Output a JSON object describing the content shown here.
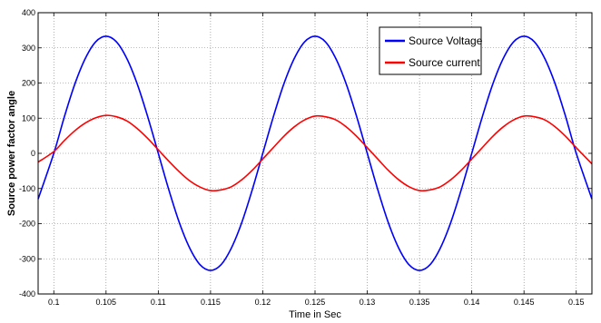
{
  "chart_data": {
    "type": "line",
    "xlabel": "Time in Sec",
    "ylabel": "Source power factor angle",
    "xlim": [
      0.0985,
      0.1515
    ],
    "ylim": [
      -400,
      400
    ],
    "x_ticks": [
      0.1,
      0.105,
      0.11,
      0.115,
      0.12,
      0.125,
      0.13,
      0.135,
      0.14,
      0.145,
      0.15
    ],
    "x_tick_labels": [
      "0.1",
      "0.105",
      "0.11",
      "0.115",
      "0.12",
      "0.125",
      "0.13",
      "0.135",
      "0.14",
      "0.145",
      "0.15"
    ],
    "y_ticks": [
      -400,
      -300,
      -200,
      -100,
      0,
      100,
      200,
      300,
      400
    ],
    "y_tick_labels": [
      "-400",
      "-300",
      "-200",
      "-100",
      "0",
      "100",
      "200",
      "300",
      "400"
    ],
    "grid": true,
    "legend": {
      "position": "top-right"
    },
    "series": [
      {
        "name": "Source Voltage",
        "color": "#0000ff",
        "x": [
          0.0985,
          0.1,
          0.101,
          0.102,
          0.103,
          0.104,
          0.105,
          0.106,
          0.107,
          0.108,
          0.109,
          0.11,
          0.111,
          0.112,
          0.113,
          0.114,
          0.115,
          0.116,
          0.117,
          0.118,
          0.119,
          0.12,
          0.121,
          0.122,
          0.123,
          0.124,
          0.125,
          0.126,
          0.127,
          0.128,
          0.129,
          0.13,
          0.131,
          0.132,
          0.133,
          0.134,
          0.135,
          0.136,
          0.137,
          0.138,
          0.139,
          0.14,
          0.141,
          0.142,
          0.143,
          0.144,
          0.145,
          0.146,
          0.147,
          0.148,
          0.149,
          0.15,
          0.1515
        ],
        "y": [
          -130,
          0,
          103,
          196,
          269,
          317,
          333,
          317,
          269,
          196,
          103,
          0,
          -103,
          -196,
          -269,
          -317,
          -333,
          -317,
          -269,
          -196,
          -103,
          0,
          103,
          196,
          269,
          317,
          333,
          317,
          269,
          196,
          103,
          0,
          -103,
          -196,
          -269,
          -317,
          -333,
          -317,
          -269,
          -196,
          -103,
          0,
          103,
          196,
          269,
          317,
          333,
          317,
          269,
          196,
          103,
          0,
          -130
        ]
      },
      {
        "name": "Source current",
        "color": "#ff0000",
        "x": [
          0.0985,
          0.1,
          0.101,
          0.102,
          0.103,
          0.104,
          0.105,
          0.106,
          0.107,
          0.108,
          0.109,
          0.11,
          0.111,
          0.112,
          0.113,
          0.114,
          0.115,
          0.116,
          0.117,
          0.118,
          0.119,
          0.12,
          0.121,
          0.122,
          0.123,
          0.124,
          0.125,
          0.126,
          0.127,
          0.128,
          0.129,
          0.13,
          0.131,
          0.132,
          0.133,
          0.134,
          0.135,
          0.136,
          0.137,
          0.138,
          0.139,
          0.14,
          0.141,
          0.142,
          0.143,
          0.144,
          0.145,
          0.146,
          0.147,
          0.148,
          0.149,
          0.15,
          0.1515
        ],
        "y": [
          -25,
          5,
          36,
          64,
          86,
          101,
          108,
          104,
          92,
          70,
          42,
          10,
          -22,
          -52,
          -78,
          -96,
          -106,
          -104,
          -95,
          -75,
          -48,
          -16,
          16,
          48,
          75,
          95,
          106,
          104,
          95,
          75,
          48,
          16,
          -16,
          -48,
          -75,
          -95,
          -106,
          -104,
          -95,
          -75,
          -48,
          -16,
          16,
          48,
          75,
          95,
          106,
          104,
          95,
          75,
          48,
          16,
          -30
        ]
      }
    ]
  }
}
